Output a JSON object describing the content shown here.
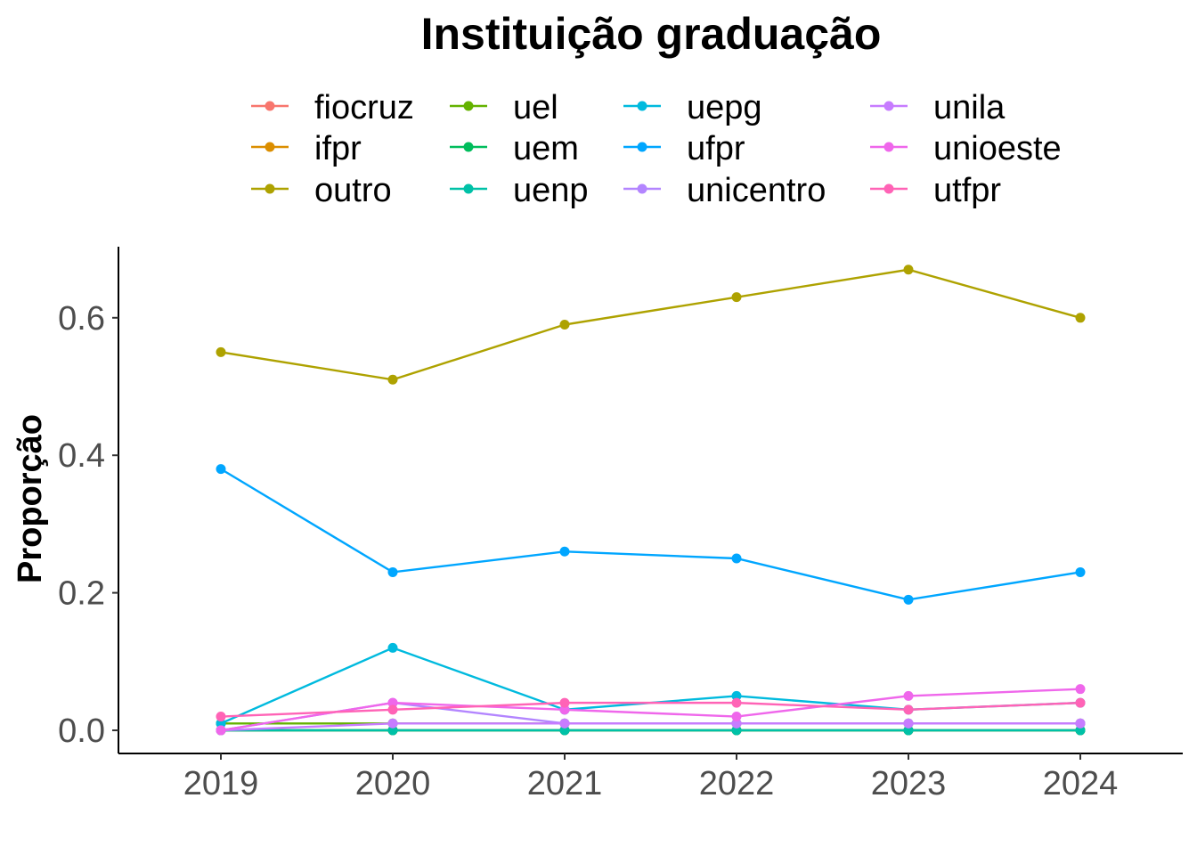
{
  "chart_data": {
    "type": "line",
    "title": "Instituição graduação",
    "xlabel": "",
    "ylabel": "Proporção",
    "x": [
      2019,
      2020,
      2021,
      2022,
      2023,
      2024
    ],
    "x_tick_labels": [
      "2019",
      "2020",
      "2021",
      "2022",
      "2023",
      "2024"
    ],
    "y_ticks": [
      0.0,
      0.2,
      0.4,
      0.6
    ],
    "y_tick_labels": [
      "0.0",
      "0.2",
      "0.4",
      "0.6"
    ],
    "ylim": [
      -0.03,
      0.7
    ],
    "grid": false,
    "legend_position": "top",
    "series": [
      {
        "name": "fiocruz",
        "color": "#F8766D",
        "values": [
          0.0,
          0.0,
          0.0,
          0.0,
          0.0,
          0.0
        ]
      },
      {
        "name": "ifpr",
        "color": "#DB8E00",
        "values": [
          0.0,
          0.0,
          0.0,
          0.0,
          0.0,
          0.0
        ]
      },
      {
        "name": "outro",
        "color": "#AEA200",
        "values": [
          0.55,
          0.51,
          0.59,
          0.63,
          0.67,
          0.6
        ]
      },
      {
        "name": "uel",
        "color": "#64B200",
        "values": [
          0.01,
          0.01,
          0.01,
          0.01,
          0.01,
          0.01
        ]
      },
      {
        "name": "uem",
        "color": "#00BD5C",
        "values": [
          0.0,
          0.0,
          0.0,
          0.0,
          0.0,
          0.0
        ]
      },
      {
        "name": "uenp",
        "color": "#00C1A7",
        "values": [
          0.0,
          0.0,
          0.0,
          0.0,
          0.0,
          0.0
        ]
      },
      {
        "name": "uepg",
        "color": "#00BADE",
        "values": [
          0.01,
          0.12,
          0.03,
          0.05,
          0.03,
          0.04
        ]
      },
      {
        "name": "ufpr",
        "color": "#00A6FF",
        "values": [
          0.38,
          0.23,
          0.26,
          0.25,
          0.19,
          0.23
        ]
      },
      {
        "name": "unicentro",
        "color": "#B385FF",
        "values": [
          0.0,
          0.04,
          0.01,
          0.01,
          0.01,
          0.01
        ]
      },
      {
        "name": "unila",
        "color": "#C77CFF",
        "values": [
          0.0,
          0.01,
          0.01,
          0.01,
          0.01,
          0.01
        ]
      },
      {
        "name": "unioeste",
        "color": "#EF67EB",
        "values": [
          0.0,
          0.04,
          0.03,
          0.02,
          0.05,
          0.06
        ]
      },
      {
        "name": "utfpr",
        "color": "#FF63B6",
        "values": [
          0.02,
          0.03,
          0.04,
          0.04,
          0.03,
          0.04
        ]
      }
    ]
  }
}
